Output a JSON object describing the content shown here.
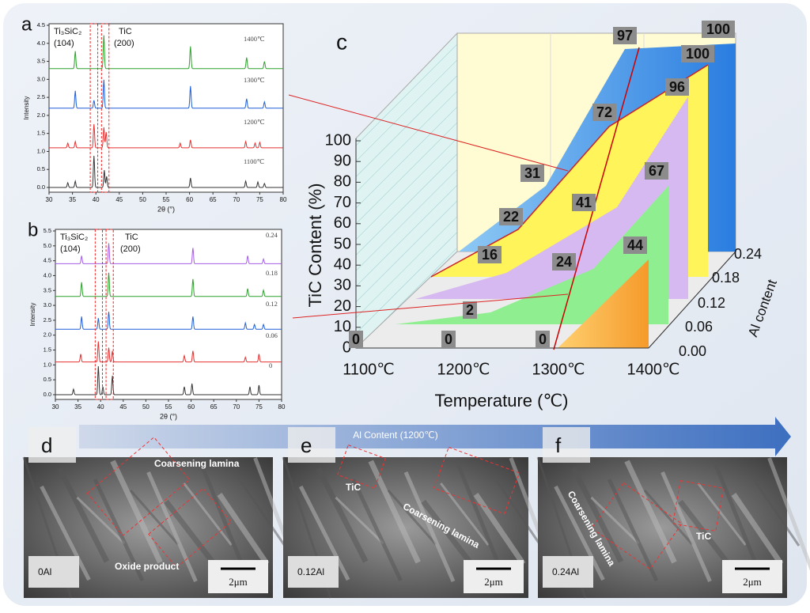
{
  "panel_a": {
    "label": "a",
    "peak_labels": [
      "Ti₃SiC₂",
      "(104)",
      "TiC",
      "(200)"
    ],
    "curve_labels": [
      "1400℃",
      "1300℃",
      "1200℃",
      "1100℃"
    ],
    "yticks": [
      "0.0",
      "0.5",
      "1.0",
      "1.5",
      "2.0",
      "2.5",
      "3.0",
      "3.5",
      "4.0",
      "4.5"
    ],
    "xticks": [
      30,
      35,
      40,
      45,
      50,
      55,
      60,
      65,
      70,
      75,
      80
    ],
    "xlabel": "2θ (°)",
    "ylabel": "Intensity"
  },
  "panel_b": {
    "label": "b",
    "peak_labels": [
      "Ti₃SiC₂",
      "(104)",
      "TiC",
      "(200)"
    ],
    "curve_labels": [
      "0.24",
      "0.18",
      "0.12",
      "0.06",
      "0"
    ],
    "yticks": [
      "0.0",
      "0.5",
      "1.0",
      "1.5",
      "2.0",
      "2.5",
      "3.0",
      "3.5",
      "4.0",
      "4.5",
      "5.0",
      "5.5"
    ],
    "xticks": [
      30,
      35,
      40,
      45,
      50,
      55,
      60,
      65,
      70,
      75,
      80
    ],
    "xlabel": "2θ (°)",
    "ylabel": "Intensity"
  },
  "panel_c": {
    "label": "c",
    "ylabel": "TiC Content (%)",
    "xlabel": "Temperature (℃)",
    "zlabel": "Al content",
    "yticks": [
      0,
      10,
      20,
      30,
      40,
      50,
      60,
      70,
      80,
      90,
      100
    ],
    "xticks": [
      "1100℃",
      "1200℃",
      "1300℃",
      "1400℃"
    ],
    "zticks": [
      "0.00",
      "0.06",
      "0.12",
      "0.18",
      "0.24"
    ],
    "data_labels": [
      97,
      100,
      100,
      96,
      72,
      67,
      44,
      41,
      31,
      24,
      22,
      16,
      2,
      0,
      0,
      0
    ]
  },
  "arrow_label": "Al Content (1200℃)",
  "sem_panels": [
    {
      "label": "d",
      "sample": "0Al",
      "scale": "2μm",
      "annotations": [
        "Coarsening lamina",
        "Oxide product"
      ]
    },
    {
      "label": "e",
      "sample": "0.12Al",
      "scale": "2μm",
      "annotations": [
        "TiC",
        "Coarsening lamina"
      ]
    },
    {
      "label": "f",
      "sample": "0.24Al",
      "scale": "2μm",
      "annotations": [
        "Coarsening lamina",
        "TiC"
      ]
    }
  ]
}
